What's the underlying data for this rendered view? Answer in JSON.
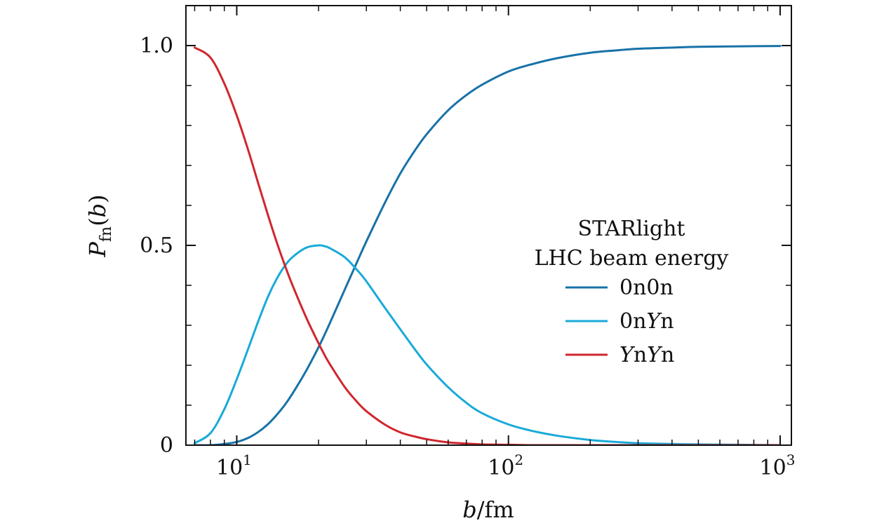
{
  "chart_data": {
    "type": "line",
    "title": "",
    "xlabel_parts": {
      "var": "b",
      "rest": "/fm"
    },
    "ylabel_parts": {
      "var": "P",
      "sub": "fn",
      "arg_open": "(",
      "arg": "b",
      "arg_close": ")"
    },
    "x_scale": "log",
    "xlim": [
      6.5,
      1100
    ],
    "ylim": [
      0,
      1.1
    ],
    "grid": false,
    "x_ticks": [
      {
        "value": 10,
        "base": "10",
        "exp": "1"
      },
      {
        "value": 100,
        "base": "10",
        "exp": "2"
      },
      {
        "value": 1000,
        "base": "10",
        "exp": "3"
      }
    ],
    "y_ticks": [
      {
        "value": 0,
        "label": "0"
      },
      {
        "value": 0.5,
        "label": "0.5"
      },
      {
        "value": 1.0,
        "label": "1.0"
      }
    ],
    "y_minor_ticks": [
      0.1,
      0.2,
      0.3,
      0.4,
      0.6,
      0.7,
      0.8,
      0.9
    ],
    "legend": {
      "placement": "center-right",
      "title_lines": [
        "STARlight",
        "LHC beam energy"
      ],
      "entries": [
        {
          "series": 0,
          "parts": [
            {
              "t": "0n0n",
              "i": false
            }
          ]
        },
        {
          "series": 1,
          "parts": [
            {
              "t": "0n",
              "i": false
            },
            {
              "t": "Y",
              "i": true
            },
            {
              "t": "n",
              "i": false
            }
          ]
        },
        {
          "series": 2,
          "parts": [
            {
              "t": "Y",
              "i": true
            },
            {
              "t": "n",
              "i": false
            },
            {
              "t": "Y",
              "i": true
            },
            {
              "t": "n",
              "i": false
            }
          ]
        }
      ]
    },
    "x": [
      7,
      8,
      9,
      10,
      11,
      12,
      13,
      14,
      15,
      16,
      18,
      20,
      21,
      22,
      25,
      28,
      30,
      35,
      40,
      45,
      50,
      60,
      70,
      80,
      100,
      120,
      150,
      200,
      250,
      300,
      400,
      500,
      700,
      1000
    ],
    "series": [
      {
        "name": "0n0n",
        "color": "#1872a8",
        "values": [
          0.0,
          0.0,
          0.003,
          0.008,
          0.018,
          0.033,
          0.052,
          0.075,
          0.1,
          0.128,
          0.186,
          0.245,
          0.275,
          0.305,
          0.39,
          0.465,
          0.51,
          0.605,
          0.68,
          0.735,
          0.778,
          0.838,
          0.876,
          0.902,
          0.935,
          0.952,
          0.968,
          0.982,
          0.988,
          0.992,
          0.995,
          0.997,
          0.998,
          0.999
        ]
      },
      {
        "name": "0nYn",
        "color": "#1aaad8",
        "values": [
          0.005,
          0.03,
          0.09,
          0.165,
          0.24,
          0.31,
          0.37,
          0.415,
          0.448,
          0.47,
          0.494,
          0.5,
          0.498,
          0.493,
          0.47,
          0.435,
          0.41,
          0.345,
          0.29,
          0.242,
          0.202,
          0.145,
          0.106,
          0.08,
          0.052,
          0.037,
          0.024,
          0.013,
          0.008,
          0.005,
          0.003,
          0.002,
          0.001,
          0.0
        ]
      },
      {
        "name": "YnYn",
        "color": "#d0262e",
        "values": [
          0.995,
          0.97,
          0.905,
          0.825,
          0.74,
          0.655,
          0.578,
          0.51,
          0.452,
          0.402,
          0.32,
          0.255,
          0.227,
          0.203,
          0.145,
          0.105,
          0.085,
          0.052,
          0.032,
          0.022,
          0.015,
          0.007,
          0.004,
          0.002,
          0.001,
          0.0,
          0.0,
          0.0,
          0.0,
          0.0,
          0.0,
          0.0,
          0.0,
          0.0
        ]
      }
    ]
  }
}
